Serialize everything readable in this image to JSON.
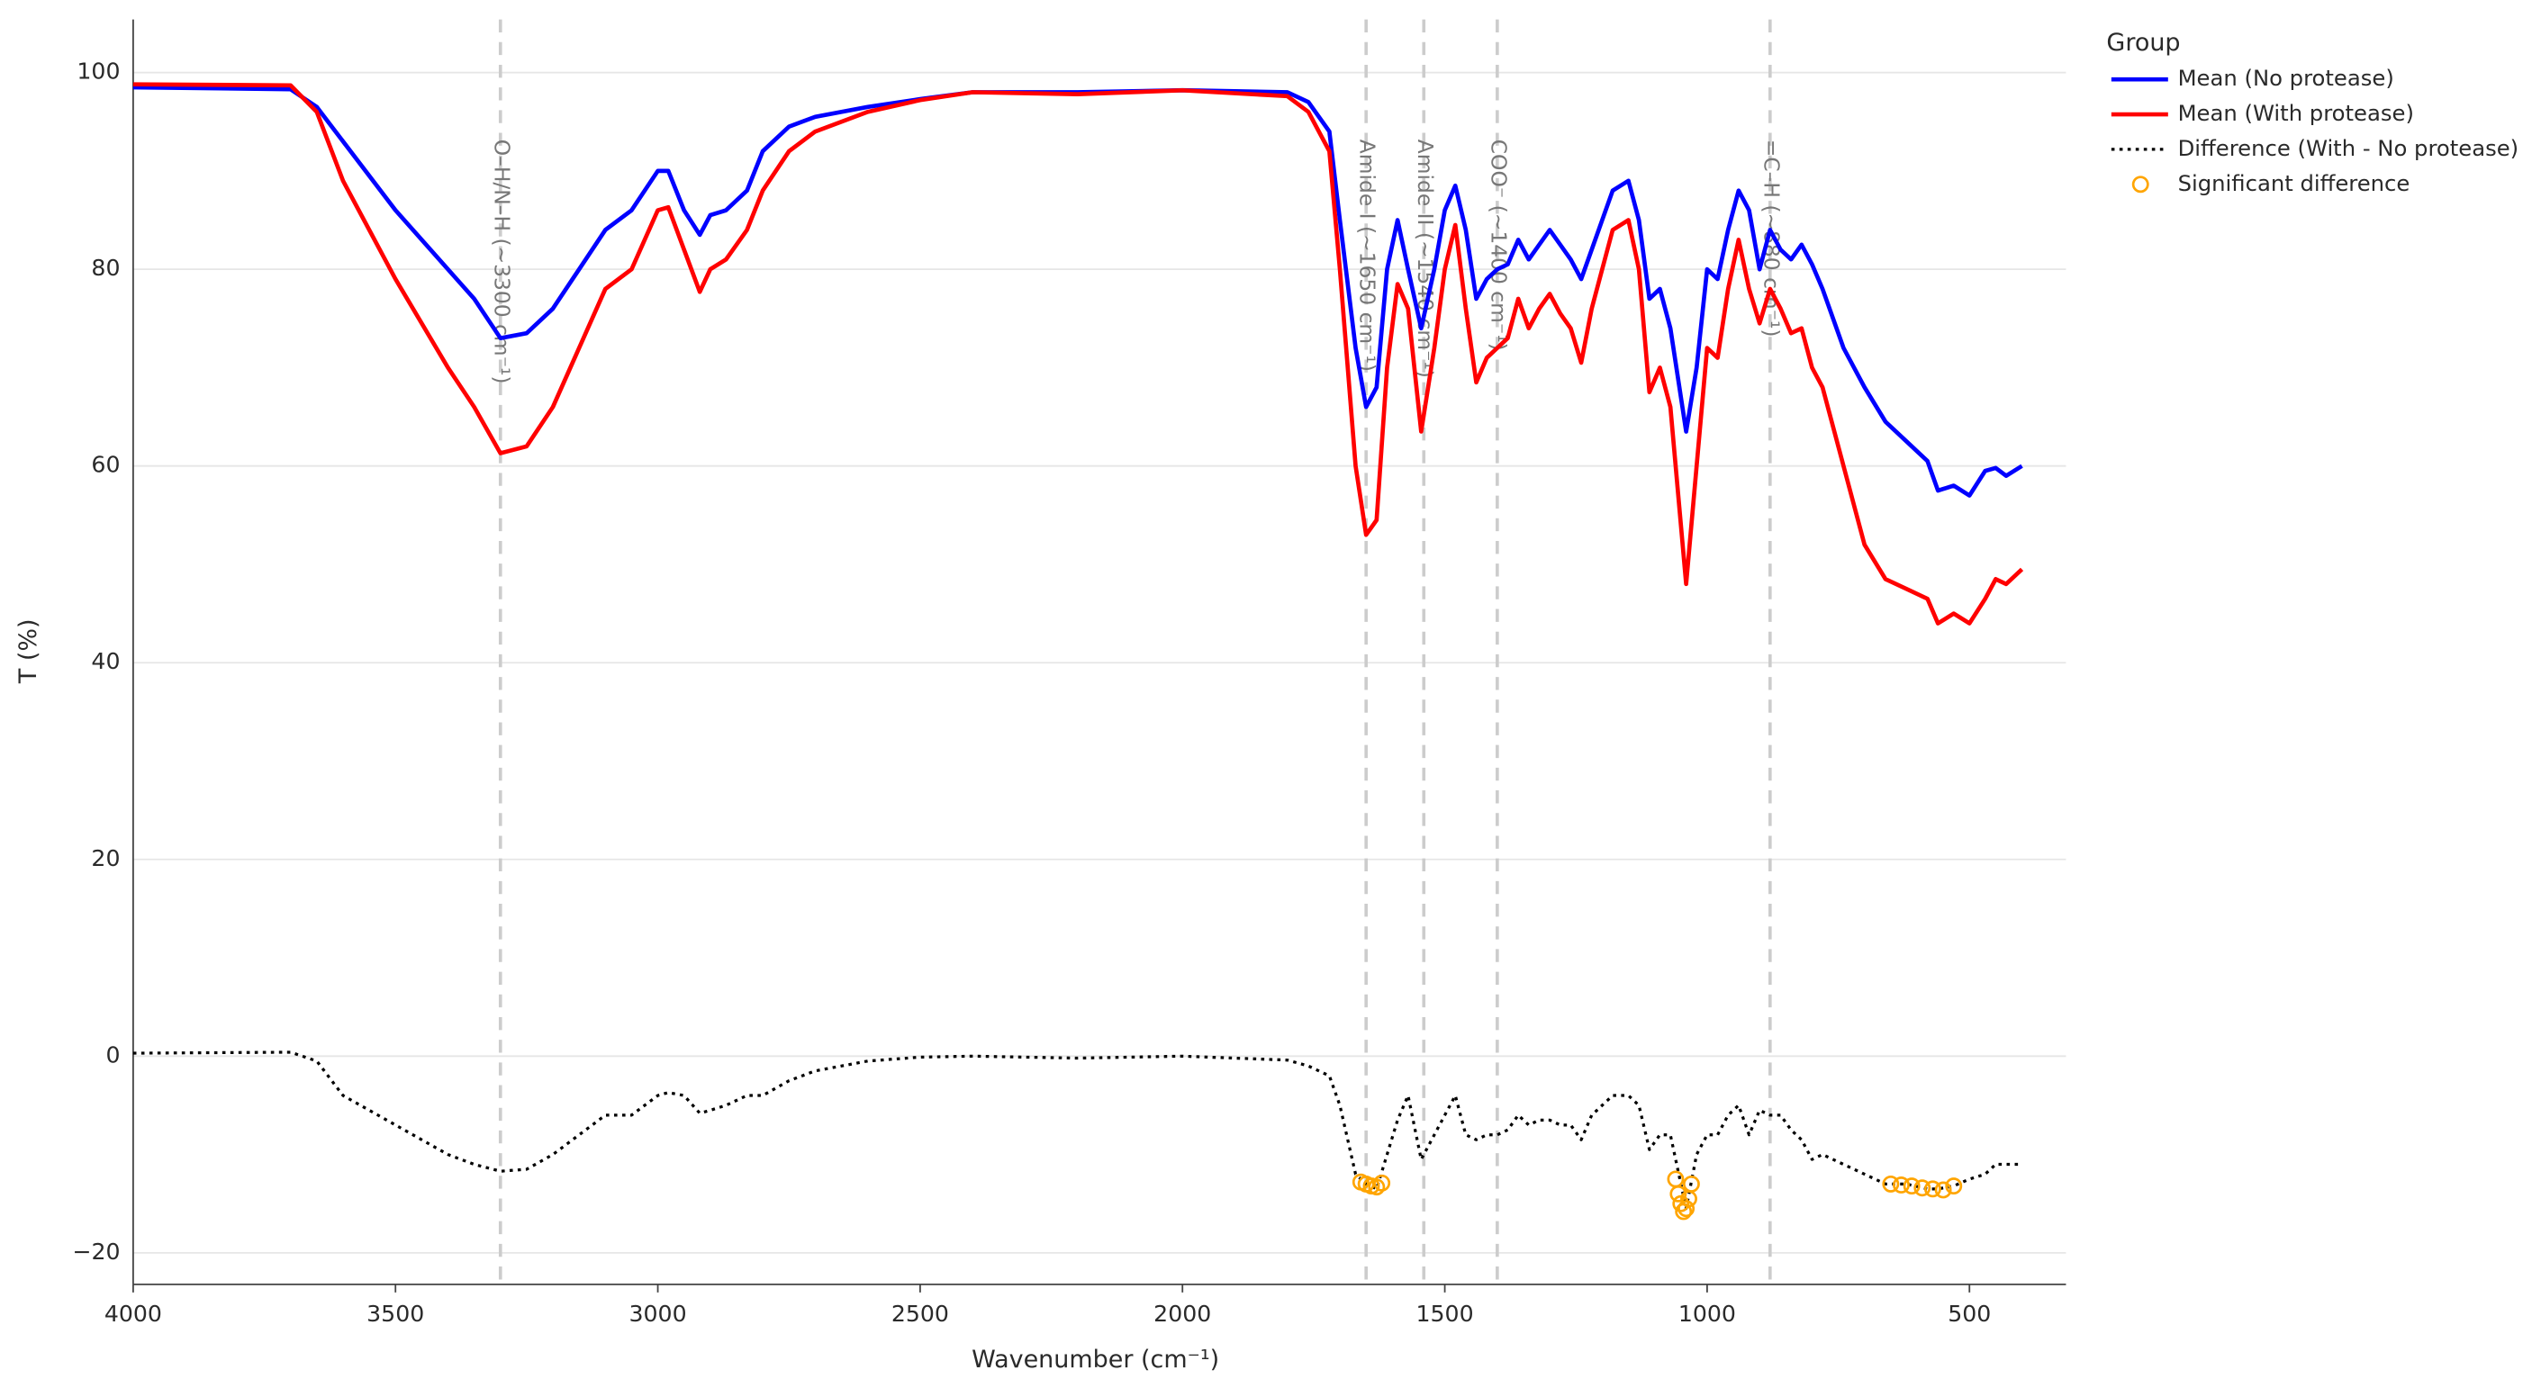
{
  "chart_data": {
    "type": "line",
    "x_label": "Wavenumber (cm⁻¹)",
    "y_label": "T (%)",
    "legend_title": "Group",
    "legend": "right",
    "grid": true,
    "xlim": [
      4000,
      316
    ],
    "ylim": [
      -23.2,
      105.4
    ],
    "xticks": [
      4000,
      3500,
      3000,
      2500,
      2000,
      1500,
      1000,
      500
    ],
    "yticks": [
      {
        "value": -20,
        "label": "−20"
      },
      0,
      20,
      40,
      60,
      80,
      100
    ],
    "x": [
      4000,
      3700,
      3650,
      3600,
      3500,
      3400,
      3350,
      3300,
      3250,
      3200,
      3150,
      3100,
      3050,
      3000,
      2980,
      2950,
      2920,
      2900,
      2870,
      2830,
      2800,
      2750,
      2700,
      2600,
      2500,
      2400,
      2200,
      2000,
      1800,
      1760,
      1720,
      1700,
      1670,
      1650,
      1630,
      1610,
      1590,
      1570,
      1545,
      1520,
      1500,
      1480,
      1460,
      1440,
      1420,
      1400,
      1380,
      1360,
      1340,
      1320,
      1300,
      1280,
      1260,
      1240,
      1220,
      1200,
      1180,
      1150,
      1130,
      1110,
      1090,
      1070,
      1040,
      1020,
      1000,
      980,
      960,
      940,
      920,
      900,
      880,
      860,
      840,
      820,
      800,
      780,
      740,
      700,
      660,
      620,
      580,
      560,
      530,
      500,
      470,
      450,
      430,
      400
    ],
    "series": [
      {
        "name": "Mean (No protease)",
        "color": "#0000ff",
        "dash": "solid",
        "values": [
          98.5,
          98.3,
          96.5,
          93,
          86,
          80,
          77,
          73,
          73.5,
          76,
          80,
          84,
          86,
          90,
          90,
          86,
          83.5,
          85.5,
          86,
          88,
          92,
          94.5,
          95.5,
          96.5,
          97.3,
          98,
          98,
          98.2,
          98,
          97,
          94,
          85,
          72,
          66,
          68,
          80,
          85,
          80,
          74,
          80,
          86,
          88.5,
          84,
          77,
          79,
          80,
          80.5,
          83,
          81,
          82.5,
          84,
          82.5,
          81,
          79,
          82,
          85,
          88,
          89,
          85,
          77,
          78,
          74,
          63.5,
          70,
          80,
          79,
          84,
          88,
          86,
          80,
          84,
          82,
          81,
          82.5,
          80.5,
          78,
          72,
          68,
          64.5,
          62.5,
          60.5,
          57.5,
          58,
          57,
          59.5,
          59.8,
          59,
          60
        ]
      },
      {
        "name": "Mean (With protease)",
        "color": "#ff0000",
        "dash": "solid",
        "values": [
          98.8,
          98.7,
          96,
          89,
          79,
          70,
          66,
          61.3,
          62,
          66,
          72,
          78,
          80,
          86,
          86.3,
          82,
          77.7,
          80,
          81,
          84,
          88,
          92,
          94,
          96,
          97.2,
          98,
          97.8,
          98.2,
          97.6,
          96,
          92,
          80,
          60,
          53,
          54.5,
          70,
          78.5,
          76,
          63.5,
          72,
          80,
          84.5,
          76,
          68.5,
          71,
          72,
          73,
          77,
          74,
          76,
          77.5,
          75.5,
          74,
          70.5,
          76,
          80,
          84,
          85,
          80,
          67.5,
          70,
          66,
          48,
          60,
          72,
          71,
          78,
          83,
          78,
          74.5,
          78,
          76,
          73.5,
          74,
          70,
          68,
          60,
          52,
          48.5,
          47.5,
          46.5,
          44,
          45,
          44,
          46.5,
          48.5,
          48,
          49.5
        ]
      },
      {
        "name": "Difference (With - No protease)",
        "color": "#000000",
        "dash": "dot",
        "values": [
          0.3,
          0.4,
          -0.5,
          -4,
          -7,
          -10,
          -11,
          -11.7,
          -11.5,
          -10,
          -8,
          -6,
          -6,
          -4,
          -3.7,
          -4,
          -5.8,
          -5.5,
          -5,
          -4,
          -4,
          -2.5,
          -1.5,
          -0.5,
          -0.1,
          0,
          -0.2,
          0,
          -0.4,
          -1,
          -2,
          -5,
          -12,
          -13,
          -13.5,
          -10,
          -6.5,
          -4,
          -10.5,
          -8,
          -6,
          -4,
          -8,
          -8.5,
          -8,
          -8,
          -7.5,
          -6,
          -7,
          -6.5,
          -6.5,
          -7,
          -7,
          -8.5,
          -6,
          -5,
          -4,
          -4,
          -5,
          -9.5,
          -8,
          -8,
          -15.5,
          -10,
          -8,
          -8,
          -6,
          -5,
          -8,
          -5.5,
          -6,
          -6,
          -7.5,
          -8.5,
          -10.5,
          -10,
          -11,
          -12,
          -13,
          -13,
          -13.5,
          -13.5,
          -13.2,
          -12.5,
          -12,
          -11,
          -11,
          -11
        ]
      },
      {
        "name": "Significant difference",
        "color": "#ffa500",
        "mode": "markers",
        "x": [
          1660,
          1650,
          1640,
          1630,
          1620,
          1060,
          1055,
          1050,
          1045,
          1040,
          1035,
          1030,
          650,
          630,
          610,
          590,
          570,
          550,
          530
        ],
        "values": [
          -12.8,
          -13,
          -13.2,
          -13.3,
          -12.9,
          -12.5,
          -14,
          -15,
          -15.8,
          -15.5,
          -14.5,
          -13,
          -13,
          -13.1,
          -13.2,
          -13.4,
          -13.5,
          -13.6,
          -13.2
        ]
      }
    ],
    "annotations": [
      {
        "x": 3300,
        "label": "O–H/N–H (~3300 cm⁻¹)"
      },
      {
        "x": 1650,
        "label": "Amide I (~1650 cm⁻¹)"
      },
      {
        "x": 1540,
        "label": "Amide II (~1540 cm⁻¹)"
      },
      {
        "x": 1400,
        "label": "COO⁻ (~1400 cm⁻¹)"
      },
      {
        "x": 880,
        "label": "=C–H (~880 cm⁻¹)"
      }
    ]
  }
}
